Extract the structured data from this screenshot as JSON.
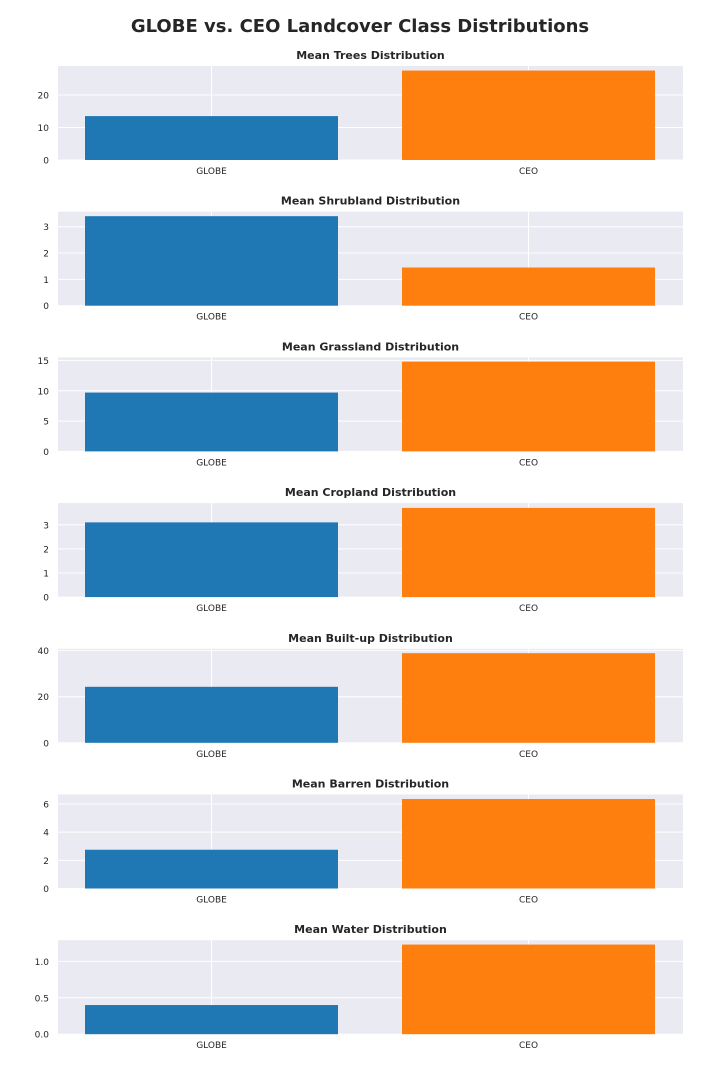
{
  "title": "GLOBE vs. CEO Landcover Class Distributions",
  "colors": {
    "background": "#eaeaf2",
    "grid": "#ffffff",
    "globe": "#1f77b4",
    "ceo": "#ff7f0e"
  },
  "chart_data": [
    {
      "type": "bar",
      "title": "Mean Trees Distribution",
      "categories": [
        "GLOBE",
        "CEO"
      ],
      "values": [
        13.5,
        27.5
      ],
      "ylim": [
        0,
        28.9
      ],
      "yticks": [
        0,
        10,
        20
      ],
      "ytick_labels": [
        "0",
        "10",
        "20"
      ],
      "grid": true
    },
    {
      "type": "bar",
      "title": "Mean Shrubland Distribution",
      "categories": [
        "GLOBE",
        "CEO"
      ],
      "values": [
        3.4,
        1.45
      ],
      "ylim": [
        0,
        3.57
      ],
      "yticks": [
        0,
        1,
        2,
        3
      ],
      "ytick_labels": [
        "0",
        "1",
        "2",
        "3"
      ],
      "grid": true
    },
    {
      "type": "bar",
      "title": "Mean Grassland Distribution",
      "categories": [
        "GLOBE",
        "CEO"
      ],
      "values": [
        9.7,
        14.8
      ],
      "ylim": [
        0,
        15.5
      ],
      "yticks": [
        0,
        5,
        10,
        15
      ],
      "ytick_labels": [
        "0",
        "5",
        "10",
        "15"
      ],
      "grid": true
    },
    {
      "type": "bar",
      "title": "Mean Cropland Distribution",
      "categories": [
        "GLOBE",
        "CEO"
      ],
      "values": [
        3.1,
        3.7
      ],
      "ylim": [
        0,
        3.9
      ],
      "yticks": [
        0,
        1,
        2,
        3
      ],
      "ytick_labels": [
        "0",
        "1",
        "2",
        "3"
      ],
      "grid": true
    },
    {
      "type": "bar",
      "title": "Mean Built-up Distribution",
      "categories": [
        "GLOBE",
        "CEO"
      ],
      "values": [
        24.3,
        38.9
      ],
      "ylim": [
        0,
        40.8
      ],
      "yticks": [
        0,
        20,
        40
      ],
      "ytick_labels": [
        "0",
        "20",
        "40"
      ],
      "grid": true
    },
    {
      "type": "bar",
      "title": "Mean Barren Distribution",
      "categories": [
        "GLOBE",
        "CEO"
      ],
      "values": [
        2.75,
        6.35
      ],
      "ylim": [
        0,
        6.67
      ],
      "yticks": [
        0,
        2,
        4,
        6
      ],
      "ytick_labels": [
        "0",
        "2",
        "4",
        "6"
      ],
      "grid": true
    },
    {
      "type": "bar",
      "title": "Mean Water Distribution",
      "categories": [
        "GLOBE",
        "CEO"
      ],
      "values": [
        0.4,
        1.23
      ],
      "ylim": [
        0,
        1.29
      ],
      "yticks": [
        0,
        0.5,
        1.0
      ],
      "ytick_labels": [
        "0.0",
        "0.5",
        "1.0"
      ],
      "grid": true
    }
  ]
}
